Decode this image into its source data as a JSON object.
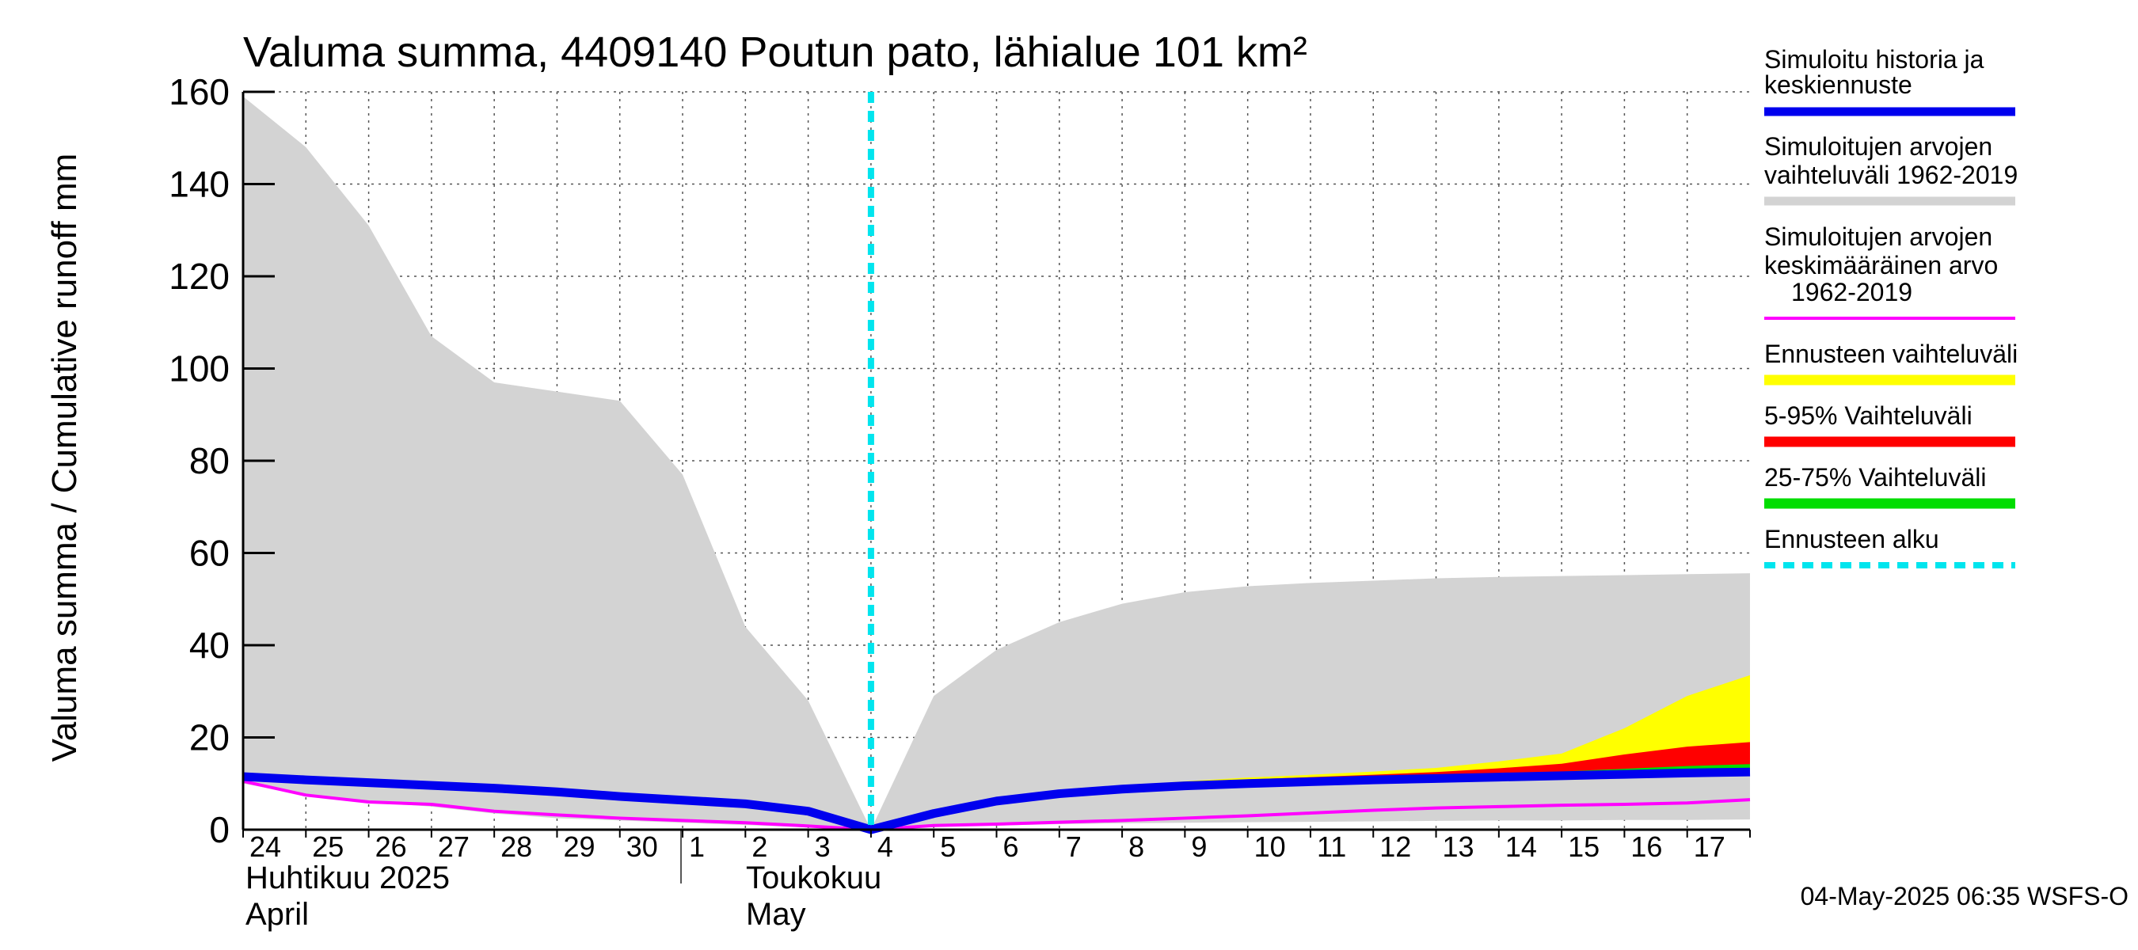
{
  "chart_data": {
    "type": "area",
    "title": "Valuma summa, 4409140 Poutun pato, lähialue 101 km²",
    "ylabel": "Valuma summa / Cumulative runoff    mm",
    "ylim": [
      0,
      160
    ],
    "yticks": [
      "0",
      "20",
      "40",
      "60",
      "80",
      "100",
      "120",
      "140",
      "160"
    ],
    "x_days": [
      "24",
      "25",
      "26",
      "27",
      "28",
      "29",
      "30",
      "1",
      "2",
      "3",
      "4",
      "5",
      "6",
      "7",
      "8",
      "9",
      "10",
      "11",
      "12",
      "13",
      "14",
      "15",
      "16",
      "17"
    ],
    "month_labels": [
      {
        "fi": "Huhtikuu  2025",
        "en": "April"
      },
      {
        "fi": "Toukokuu",
        "en": "May"
      }
    ],
    "forecast_start": 10,
    "series": [
      {
        "name": "Simuloitujen arvojen vaihteluväli 1962-2019",
        "kind": "band",
        "color": "#d3d3d3",
        "x": [
          0,
          1,
          2,
          3,
          4,
          5,
          6,
          7,
          8,
          9,
          10,
          11,
          12,
          13,
          14,
          15,
          16,
          17,
          18,
          19,
          20,
          21,
          22,
          23,
          24
        ],
        "upper": [
          159,
          148,
          131,
          107,
          97,
          95,
          93,
          77,
          44,
          28,
          0,
          29,
          39,
          45,
          49,
          51.5,
          52.8,
          53.5,
          54,
          54.5,
          54.8,
          55,
          55.2,
          55.4,
          55.6
        ],
        "lower": [
          10,
          7.5,
          6,
          5,
          3.5,
          2.5,
          2,
          1.5,
          1,
          0.5,
          0,
          0.7,
          0.9,
          1.2,
          1.4,
          1.5,
          1.6,
          1.7,
          1.8,
          1.9,
          2,
          2,
          2.1,
          2.1,
          2.2
        ]
      },
      {
        "name": "Ennusteen vaihteluväli",
        "kind": "band",
        "color": "#ffff00",
        "x": [
          10,
          11,
          12,
          13,
          14,
          15,
          16,
          17,
          18,
          19,
          20,
          21,
          22,
          23,
          24
        ],
        "upper": [
          0,
          3.8,
          6.5,
          8.2,
          9.5,
          10.5,
          11.3,
          11.9,
          12.6,
          13.4,
          14.8,
          16.5,
          22,
          29,
          33.5
        ],
        "lower": [
          0,
          3.2,
          5.7,
          7.3,
          8.3,
          9.2,
          9.8,
          10.2,
          10.6,
          11,
          11.3,
          11.6,
          11.9,
          12.1,
          12.3
        ]
      },
      {
        "name": "5-95% Vaihteluväli",
        "kind": "band",
        "color": "#ff0000",
        "x": [
          10,
          11,
          12,
          13,
          14,
          15,
          16,
          17,
          18,
          19,
          20,
          21,
          22,
          23,
          24
        ],
        "upper": [
          0,
          3.7,
          6.4,
          8,
          9.2,
          10.1,
          10.9,
          11.4,
          11.9,
          12.5,
          13.3,
          14.3,
          16.3,
          18,
          19
        ],
        "lower": [
          0,
          3.3,
          5.8,
          7.4,
          8.4,
          9.3,
          9.9,
          10.3,
          10.7,
          11.1,
          11.4,
          11.7,
          12,
          12.2,
          12.4
        ]
      },
      {
        "name": "25-75% Vaihteluväli",
        "kind": "band",
        "color": "#00dd00",
        "x": [
          10,
          11,
          12,
          13,
          14,
          15,
          16,
          17,
          18,
          19,
          20,
          21,
          22,
          23,
          24
        ],
        "upper": [
          0,
          3.6,
          6.2,
          7.8,
          8.9,
          9.8,
          10.5,
          11,
          11.4,
          11.8,
          12.2,
          12.6,
          13.2,
          13.8,
          14.2
        ],
        "lower": [
          0,
          3.4,
          5.9,
          7.5,
          8.5,
          9.4,
          10,
          10.4,
          10.8,
          11.2,
          11.5,
          11.8,
          12.1,
          12.3,
          12.5
        ]
      },
      {
        "name": "Simuloitujen arvojen keskimääräinen arvo 1962-2019",
        "kind": "line",
        "color": "#ff00ff",
        "width": 4,
        "x": [
          0,
          1,
          2,
          3,
          4,
          5,
          6,
          7,
          8,
          9,
          10,
          11,
          12,
          13,
          14,
          15,
          16,
          17,
          18,
          19,
          20,
          21,
          22,
          23,
          24
        ],
        "y": [
          10.5,
          7.5,
          6,
          5.5,
          4,
          3.2,
          2.5,
          2,
          1.5,
          0.8,
          0,
          0.9,
          1.2,
          1.6,
          2,
          2.5,
          3,
          3.6,
          4.2,
          4.7,
          5,
          5.3,
          5.5,
          5.8,
          6.5
        ]
      },
      {
        "name": "Simuloitu historia ja keskiennuste",
        "kind": "line",
        "color": "#0000ee",
        "width": 11,
        "x": [
          0,
          1,
          2,
          3,
          4,
          5,
          6,
          7,
          8,
          9,
          10,
          11,
          12,
          13,
          14,
          15,
          16,
          17,
          18,
          19,
          20,
          21,
          22,
          23,
          24
        ],
        "y": [
          11.5,
          10.8,
          10.2,
          9.6,
          9,
          8.2,
          7.2,
          6.4,
          5.6,
          4,
          0,
          3.5,
          6.2,
          7.8,
          8.8,
          9.5,
          10,
          10.4,
          10.8,
          11.1,
          11.4,
          11.7,
          12,
          12.3,
          12.5
        ]
      }
    ],
    "legend": [
      {
        "label": "Simuloitu historia ja keskiennuste",
        "color": "#0000ee",
        "style": "solid"
      },
      {
        "label": "Simuloitujen arvojen vaihteluväli 1962-2019",
        "color": "#d3d3d3",
        "style": "solid"
      },
      {
        "label": "Simuloitujen arvojen keskimääräinen arvo  1962-2019",
        "color": "#ff00ff",
        "style": "thin"
      },
      {
        "label": "Ennusteen vaihteluväli",
        "color": "#ffff00",
        "style": "solid"
      },
      {
        "label": "5-95% Vaihteluväli",
        "color": "#ff0000",
        "style": "solid"
      },
      {
        "label": "25-75% Vaihteluväli",
        "color": "#00dd00",
        "style": "solid"
      },
      {
        "label": "Ennusteen alku",
        "color": "#00e5ee",
        "style": "dashed"
      }
    ],
    "forecast_line_color": "#00e5ee"
  },
  "legend_text": {
    "l1a": "Simuloitu historia ja",
    "l1b": "keskiennuste",
    "l2a": "Simuloitujen arvojen",
    "l2b": "vaihteluväli 1962-2019",
    "l3a": "Simuloitujen arvojen",
    "l3b": "keskimääräinen arvo",
    "l3c": "1962-2019",
    "l4": "Ennusteen vaihteluväli",
    "l5": "5-95% Vaihteluväli",
    "l6": "25-75% Vaihteluväli",
    "l7": "Ennusteen alku"
  },
  "footer": {
    "timestamp": "04-May-2025 06:35 WSFS-O"
  }
}
